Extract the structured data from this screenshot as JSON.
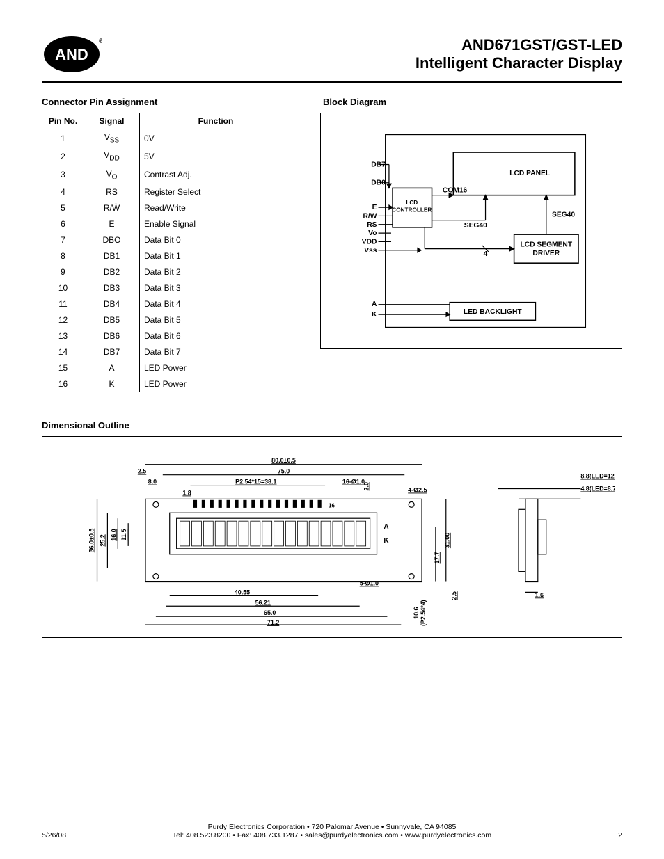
{
  "header": {
    "logo_text": "AND",
    "title_line1": "AND671GST/GST-LED",
    "title_line2": "Intelligent Character Display"
  },
  "pin_table": {
    "heading": "Connector Pin Assignment",
    "columns": [
      "Pin No.",
      "Signal",
      "Function"
    ],
    "rows": [
      {
        "pin": "1",
        "signal_html": "V<sub>SS</sub>",
        "function": "0V"
      },
      {
        "pin": "2",
        "signal_html": "V<sub>DD</sub>",
        "function": "5V"
      },
      {
        "pin": "3",
        "signal_html": "V<sub>O</sub>",
        "function": "Contrast Adj."
      },
      {
        "pin": "4",
        "signal_html": "RS",
        "function": "Register Select"
      },
      {
        "pin": "5",
        "signal_html": "R/W̄",
        "function": "Read/Write"
      },
      {
        "pin": "6",
        "signal_html": "E",
        "function": "Enable Signal"
      },
      {
        "pin": "7",
        "signal_html": "DBO",
        "function": "Data Bit 0"
      },
      {
        "pin": "8",
        "signal_html": "DB1",
        "function": "Data Bit 1"
      },
      {
        "pin": "9",
        "signal_html": "DB2",
        "function": "Data Bit 2"
      },
      {
        "pin": "10",
        "signal_html": "DB3",
        "function": "Data Bit 3"
      },
      {
        "pin": "11",
        "signal_html": "DB4",
        "function": "Data Bit 4"
      },
      {
        "pin": "12",
        "signal_html": "DB5",
        "function": "Data Bit 5"
      },
      {
        "pin": "13",
        "signal_html": "DB6",
        "function": "Data Bit 6"
      },
      {
        "pin": "14",
        "signal_html": "DB7",
        "function": "Data Bit 7"
      },
      {
        "pin": "15",
        "signal_html": "A",
        "function": "LED Power"
      },
      {
        "pin": "16",
        "signal_html": "K",
        "function": "LED Power"
      }
    ]
  },
  "block_diagram": {
    "heading": "Block Diagram",
    "input_labels": [
      "DB7",
      "DB0",
      "E",
      "R/W",
      "RS",
      "Vo",
      "VDD",
      "Vss"
    ],
    "bottom_input_labels": [
      "A",
      "K"
    ],
    "blocks": {
      "controller": "LCD\nCONTROLLER",
      "panel": "LCD PANEL",
      "segment": "LCD SEGMENT\nDRIVER",
      "backlight": "LED BACKLIGHT"
    },
    "signals": {
      "com": "COM16",
      "seg_top": "SEG40",
      "seg_right": "SEG40",
      "bus": "4"
    }
  },
  "dimensional_outline": {
    "heading": "Dimensional Outline",
    "dimensions": {
      "width_overall": "80.0±0.5",
      "width_75": "75.0",
      "pitch": "P2.54*15=38.1",
      "width_71_2": "71.2",
      "width_65": "65.0",
      "width_56_21": "56.21",
      "width_40_55": "40.55",
      "left_2_5": "2.5",
      "left_8_0": "8.0",
      "left_1_8": "1.8",
      "hole_16": "16-Ø1.0",
      "hole_5": "5-Ø1.0",
      "corner_4": "4-Ø2.5",
      "d2_0": "2.0",
      "h_36": "36.0±0.5",
      "h_25_2": "25.2",
      "h_16_0": "16.0",
      "h_11_5": "11.5",
      "h_31": "31.00",
      "h_17_7": "17.7",
      "h_2_5": "2.5",
      "h_10_6": "10.6\n(P2.54*4)",
      "marker_a": "A",
      "marker_k": "K",
      "pin16": "16",
      "side_1_6": "1.6",
      "side_8_8": "8.8(LED=12.7)",
      "side_4_8": "4.8(LED=8.7)"
    }
  },
  "footer": {
    "date": "5/26/08",
    "company_line": "Purdy Electronics Corporation  •  720 Palomar Avenue  •  Sunnyvale, CA 94085",
    "contact_line": "Tel: 408.523.8200  •  Fax: 408.733.1287  •  sales@purdyelectronics.com  •  www.purdyelectronics.com",
    "page": "2"
  },
  "colors": {
    "text": "#000000",
    "border": "#000000",
    "background": "#ffffff"
  }
}
